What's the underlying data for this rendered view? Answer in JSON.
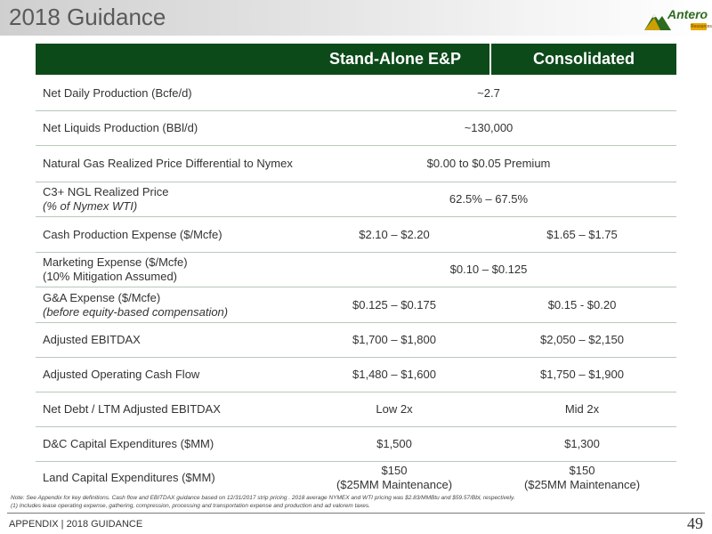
{
  "title": "2018 Guidance",
  "logo": {
    "name": "Antero",
    "sub": "Resources",
    "icon": "mountain-logo-icon",
    "colors": {
      "green": "#2e6b1f",
      "gold": "#e8a800"
    }
  },
  "table": {
    "headers": [
      "Stand-Alone E&P",
      "Consolidated"
    ],
    "header_color": "#0d4a1a",
    "rows": [
      {
        "label": "Net Daily Production (Bcfe/d)",
        "sub": "",
        "span": "~2.7"
      },
      {
        "label": "Net Liquids Production (BBl/d)",
        "sub": "",
        "span": "~130,000"
      },
      {
        "label": "Natural Gas Realized Price Differential to Nymex",
        "sub": "",
        "span": "$0.00 to $0.05 Premium"
      },
      {
        "label": "C3+ NGL Realized Price",
        "sub": "(% of Nymex WTI)",
        "span": "62.5% – 67.5%"
      },
      {
        "label": "Cash Production Expense ($/Mcfe)",
        "sub": "",
        "left": "$2.10 – $2.20",
        "right": "$1.65 – $1.75"
      },
      {
        "label": "Marketing Expense ($/Mcfe)",
        "sub2": "(10% Mitigation Assumed)",
        "span": "$0.10 – $0.125"
      },
      {
        "label": "G&A Expense ($/Mcfe)",
        "sub": "(before equity-based compensation)",
        "left": "$0.125 – $0.175",
        "right": "$0.15 - $0.20"
      },
      {
        "label": "Adjusted EBITDAX",
        "sub": "",
        "left": "$1,700 – $1,800",
        "right": "$2,050 – $2,150"
      },
      {
        "label": "Adjusted Operating Cash Flow",
        "sub": "",
        "left": "$1,480 – $1,600",
        "right": "$1,750 – $1,900"
      },
      {
        "label": "Net Debt / LTM Adjusted EBITDAX",
        "sub": "",
        "left": "Low 2x",
        "right": "Mid 2x"
      },
      {
        "label": "D&C Capital Expenditures ($MM)",
        "sub": "",
        "left": "$1,500",
        "right": "$1,300"
      },
      {
        "label": "Land Capital Expenditures ($MM)",
        "sub": "",
        "left": "$150",
        "left2": "($25MM Maintenance)",
        "right": "$150",
        "right2": "($25MM Maintenance)"
      }
    ]
  },
  "notes": [
    "Note: See Appendix for key definitions.  Cash flow and EBITDAX guidance based on 12/31/2017 strip pricing .  2018 average NYMEX and WTI pricing was $2.83/MMBtu and $59.57/Bbl, respectively.",
    "(1)    Includes lease operating expense, gathering, compression, processing and transportation expense and production and ad valorem taxes."
  ],
  "footer": {
    "section": "APPENDIX | 2018 GUIDANCE",
    "page": "49"
  }
}
